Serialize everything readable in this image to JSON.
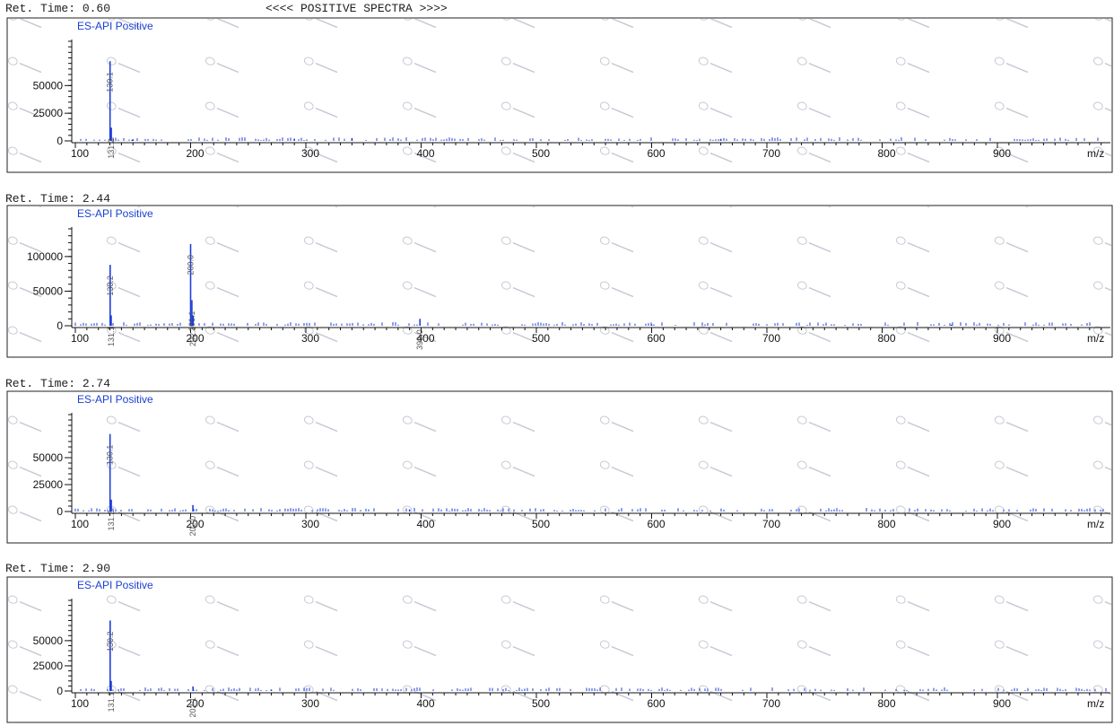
{
  "header": {
    "title": "<<<< POSITIVE SPECTRA >>>>"
  },
  "colors": {
    "trace": "#1f3fd8",
    "label": "#1a3fd1",
    "axis": "#111111",
    "watermark": "#c9c9d6"
  },
  "chart_data": [
    {
      "type": "bar",
      "title": "Ret. Time: 0.60",
      "label": "ES-API Positive",
      "xlabel": "m/z",
      "xlim": [
        100,
        1000
      ],
      "ylim": [
        0,
        90000
      ],
      "x_ticks": [
        100,
        200,
        300,
        400,
        500,
        600,
        700,
        800,
        900
      ],
      "y_ticks": [
        0,
        25000,
        50000
      ],
      "peaks": [
        {
          "mz": 130.1,
          "intensity": 72000,
          "label": "130.1"
        },
        {
          "mz": 131.2,
          "intensity": 12000,
          "label": "131.2"
        },
        {
          "mz": 150,
          "intensity": 1500
        },
        {
          "mz": 290,
          "intensity": 2000
        },
        {
          "mz": 340,
          "intensity": 2500
        },
        {
          "mz": 660,
          "intensity": 1800
        }
      ]
    },
    {
      "type": "bar",
      "title": "Ret. Time: 2.44",
      "label": "ES-API Positive",
      "xlabel": "m/z",
      "xlim": [
        100,
        1000
      ],
      "ylim": [
        0,
        140000
      ],
      "x_ticks": [
        100,
        200,
        300,
        400,
        500,
        600,
        700,
        800,
        900
      ],
      "y_ticks": [
        0,
        50000,
        100000
      ],
      "peaks": [
        {
          "mz": 130.2,
          "intensity": 88000,
          "label": "130.2"
        },
        {
          "mz": 131.1,
          "intensity": 15000,
          "label": "131.1"
        },
        {
          "mz": 200.0,
          "intensity": 118000,
          "label": "200.0"
        },
        {
          "mz": 201.1,
          "intensity": 37000,
          "label": "201.1"
        },
        {
          "mz": 202.1,
          "intensity": 15000,
          "label": "202.1"
        },
        {
          "mz": 399.0,
          "intensity": 10000,
          "label": "399.0"
        },
        {
          "mz": 600,
          "intensity": 2000
        },
        {
          "mz": 860,
          "intensity": 1500
        }
      ]
    },
    {
      "type": "bar",
      "title": "Ret. Time: 2.74",
      "label": "ES-API Positive",
      "xlabel": "m/z",
      "xlim": [
        100,
        1000
      ],
      "ylim": [
        0,
        90000
      ],
      "x_ticks": [
        100,
        200,
        300,
        400,
        500,
        600,
        700,
        800,
        900
      ],
      "y_ticks": [
        0,
        25000,
        50000
      ],
      "peaks": [
        {
          "mz": 130.1,
          "intensity": 72000,
          "label": "130.1"
        },
        {
          "mz": 131.2,
          "intensity": 11000,
          "label": "131.2"
        },
        {
          "mz": 202.0,
          "intensity": 6000,
          "label": "202.0"
        },
        {
          "mz": 390,
          "intensity": 2000
        }
      ]
    },
    {
      "type": "bar",
      "title": "Ret. Time: 2.90",
      "label": "ES-API Positive",
      "xlabel": "m/z",
      "xlim": [
        100,
        1000
      ],
      "ylim": [
        0,
        90000
      ],
      "x_ticks": [
        100,
        200,
        300,
        400,
        500,
        600,
        700,
        800,
        900
      ],
      "y_ticks": [
        0,
        25000,
        50000
      ],
      "peaks": [
        {
          "mz": 130.2,
          "intensity": 70000,
          "label": "130.2"
        },
        {
          "mz": 131.1,
          "intensity": 10000,
          "label": "131.1"
        },
        {
          "mz": 202.1,
          "intensity": 4500,
          "label": "202.1"
        },
        {
          "mz": 270,
          "intensity": 1500
        }
      ]
    }
  ]
}
